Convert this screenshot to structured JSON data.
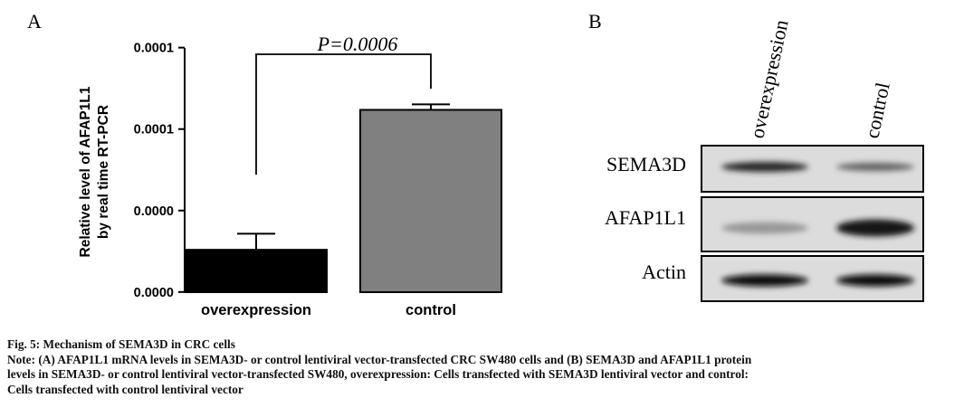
{
  "panel_a": {
    "label": "A",
    "significance": "P=0.0006",
    "ylabel_line1": "Relative level of AFAP1L1",
    "ylabel_line2": "by real time RT-PCR"
  },
  "chart_data": {
    "type": "bar",
    "categories": [
      "overexpression",
      "control"
    ],
    "values": [
      2.59e-05,
      0.0001118
    ],
    "errors": [
      9.9e-06,
      3.4e-06
    ],
    "colors": [
      "#000000",
      "#808080"
    ],
    "ylim": [
      -1e-07,
      0.0001498
    ],
    "yticks": [
      0,
      5e-05,
      0.0001,
      0.00015
    ],
    "ytick_labels": [
      "0.0000",
      "0.0000",
      "0.0001",
      "0.0001"
    ],
    "xlabel": "",
    "ylabel": "Relative level of AFAP1L1 by real time RT-PCR",
    "annotation": "P=0.0006"
  },
  "panel_b": {
    "label": "B",
    "lanes": [
      "overexpression",
      "control"
    ],
    "rows": [
      {
        "name": "SEMA3D",
        "intensity": [
          0.85,
          0.55
        ]
      },
      {
        "name": "AFAP1L1",
        "intensity": [
          0.3,
          0.95
        ]
      },
      {
        "name": "Actin",
        "intensity": [
          1.0,
          1.0
        ]
      }
    ]
  },
  "caption": {
    "title": "Fig. 5: Mechanism of SEMA3D in CRC cells",
    "note_line1": "Note: (A) AFAP1L1 mRNA levels in SEMA3D- or control lentiviral vector-transfected CRC SW480 cells and (B) SEMA3D and AFAP1L1 protein",
    "note_line2": "levels in SEMA3D- or control lentiviral vector-transfected SW480, overexpression: Cells transfected with SEMA3D lentiviral vector and control:",
    "note_line3": "Cells transfected with control lentiviral vector"
  }
}
